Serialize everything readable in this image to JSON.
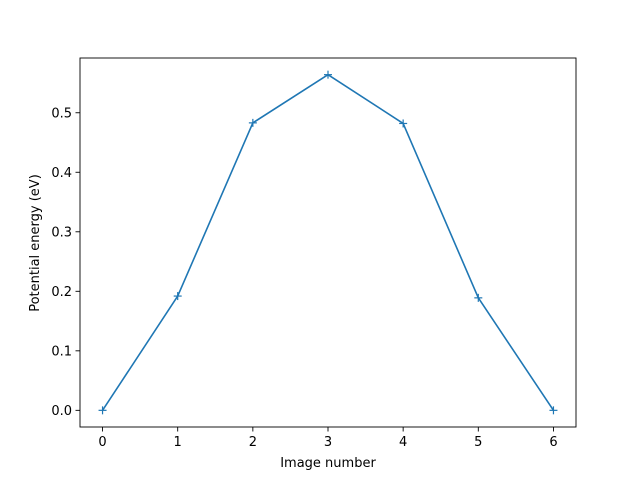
{
  "chart_data": {
    "type": "line",
    "xlabel": "Image number",
    "ylabel": "Potential energy (eV)",
    "xlim": [
      -0.3,
      6.3
    ],
    "ylim": [
      -0.028,
      0.592
    ],
    "xticks": [
      0,
      1,
      2,
      3,
      4,
      5,
      6
    ],
    "yticks": [
      0.0,
      0.1,
      0.2,
      0.3,
      0.4,
      0.5
    ],
    "ytick_labels": [
      "0.0",
      "0.1",
      "0.2",
      "0.3",
      "0.4",
      "0.5"
    ],
    "grid": false,
    "marker": "+",
    "color": "#1f77b4",
    "series": [
      {
        "x": [
          0,
          1,
          2,
          3,
          4,
          5,
          6
        ],
        "values": [
          0.0,
          0.192,
          0.483,
          0.564,
          0.482,
          0.189,
          0.0
        ]
      }
    ]
  }
}
